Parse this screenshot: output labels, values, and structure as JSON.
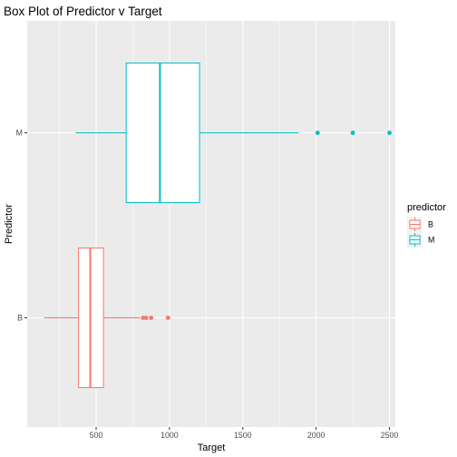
{
  "chart_data": {
    "type": "boxplot",
    "orientation": "horizontal",
    "title": "Box Plot of Predictor v Target",
    "xlabel": "Target",
    "ylabel": "Predictor",
    "xlim": [
      30,
      2540
    ],
    "x_ticks": [
      500,
      1000,
      1500,
      2000,
      2500
    ],
    "x_tick_labels": [
      "500",
      "1000",
      "1500",
      "2000",
      "2500"
    ],
    "categories": [
      "B",
      "M"
    ],
    "grid": true,
    "legend": {
      "title": "predictor",
      "position": "right",
      "entries": [
        "B",
        "M"
      ]
    },
    "series": [
      {
        "name": "B",
        "color": "#F8766D",
        "whisker_low": 145,
        "q1": 380,
        "median": 460,
        "q3": 550,
        "whisker_high": 800,
        "outliers": [
          820,
          840,
          875,
          990
        ]
      },
      {
        "name": "M",
        "color": "#00BFC4",
        "whisker_low": 360,
        "q1": 705,
        "median": 935,
        "q3": 1205,
        "whisker_high": 1880,
        "outliers": [
          2010,
          2250,
          2500
        ]
      }
    ]
  }
}
